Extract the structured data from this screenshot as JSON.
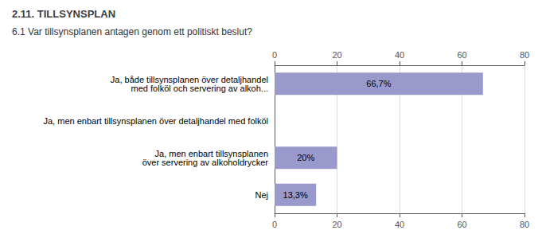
{
  "chart_data": {
    "type": "bar",
    "orientation": "horizontal",
    "title": "2.11. TILLSYNSPLAN",
    "subtitle": "6.1 Var tillsynsplanen antagen genom ett politiskt beslut?",
    "categories": [
      "Ja, både tillsynsplanen över detaljhandel\nmed folköl och servering av alkoh...",
      "Ja, men enbart tillsynsplanen över detaljhandel med folköl",
      "Ja, men enbart tillsynsplanen\növer servering av alkoholdrycker",
      "Nej"
    ],
    "values": [
      66.7,
      0.0,
      20.0,
      13.3
    ],
    "value_labels": [
      "66,7%",
      null,
      "20%",
      "13,3%"
    ],
    "data_labels": true,
    "color": "#9999cc",
    "xlim": [
      0,
      80
    ],
    "xticks": [
      0,
      20,
      40,
      60,
      80
    ],
    "grid": true
  }
}
